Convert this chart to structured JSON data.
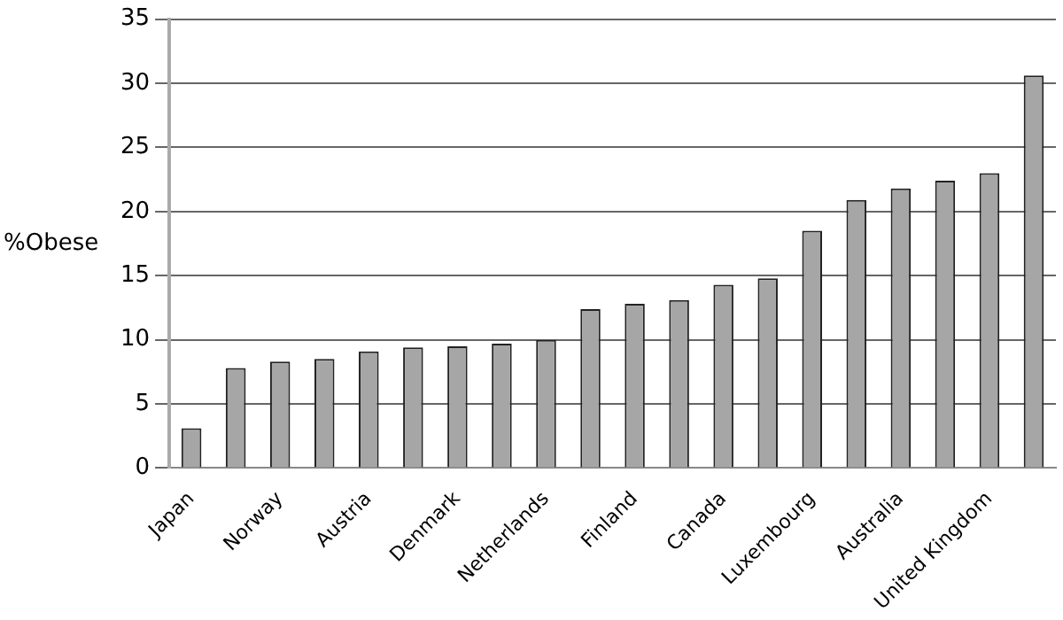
{
  "chart_data": {
    "type": "bar",
    "ylabel": "%Obese",
    "categories": [
      "Japan",
      null,
      "Norway",
      null,
      "Austria",
      null,
      "Denmark",
      null,
      "Netherlands",
      null,
      "Finland",
      null,
      "Canada",
      null,
      "Luxembourg",
      null,
      "Australia",
      null,
      "United Kingdom",
      null
    ],
    "values": [
      3.1,
      7.8,
      8.3,
      8.5,
      9.1,
      9.4,
      9.5,
      9.7,
      10.0,
      12.4,
      12.8,
      13.1,
      14.3,
      14.8,
      18.5,
      20.9,
      21.8,
      22.4,
      23.0,
      30.6
    ],
    "color": "#a6a6a6",
    "ylim": [
      0,
      35
    ],
    "yticks": [
      0,
      5,
      10,
      15,
      20,
      25,
      30,
      35
    ],
    "grid": "y",
    "legend": false
  }
}
